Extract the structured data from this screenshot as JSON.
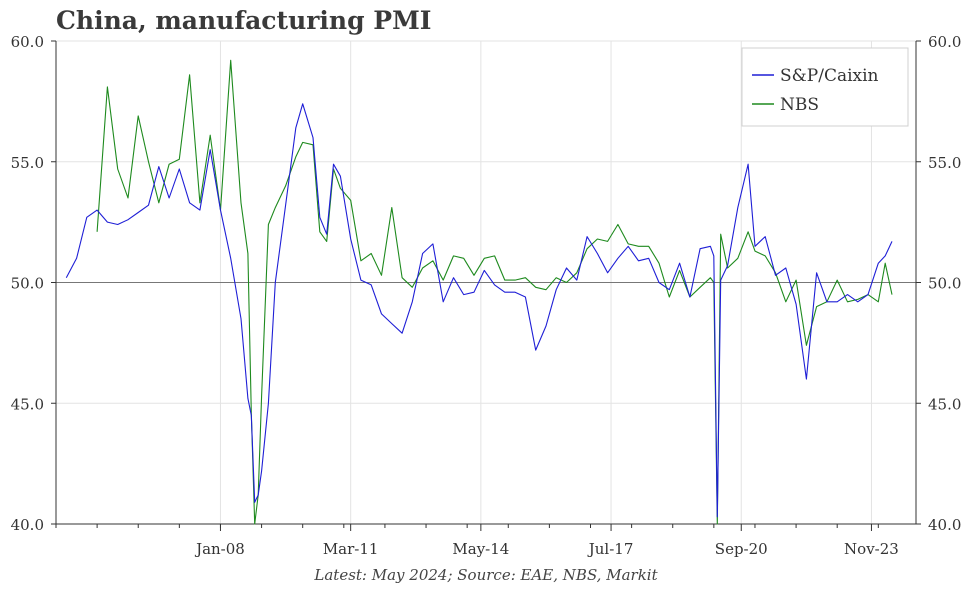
{
  "title": "China, manufacturing PMI",
  "source": "Latest: May 2024; Source: EAE, NBS, Markit",
  "chart_data": {
    "type": "line",
    "title": "China, manufacturing PMI",
    "xlabel": "",
    "ylabel": "",
    "ylim": [
      40.0,
      60.0
    ],
    "y_ticks": [
      "40.0",
      "45.0",
      "50.0",
      "55.0",
      "60.0"
    ],
    "x_ticks": [
      "Jan-08",
      "Mar-11",
      "May-14",
      "Jul-17",
      "Sep-20",
      "Nov-23"
    ],
    "xlim": [
      "2004-01",
      "2024-12"
    ],
    "reference_line": 50.0,
    "grid": true,
    "legend": "top-right",
    "series": [
      {
        "name": "S&P/Caixin",
        "color": "#1f1fd6",
        "x": [
          "2004-04",
          "2004-07",
          "2004-10",
          "2005-01",
          "2005-04",
          "2005-07",
          "2005-10",
          "2006-01",
          "2006-04",
          "2006-07",
          "2006-10",
          "2007-01",
          "2007-04",
          "2007-07",
          "2007-10",
          "2008-01",
          "2008-04",
          "2008-07",
          "2008-09",
          "2008-10",
          "2008-11",
          "2008-12",
          "2009-01",
          "2009-03",
          "2009-05",
          "2009-08",
          "2009-11",
          "2010-01",
          "2010-04",
          "2010-06",
          "2010-08",
          "2010-10",
          "2010-12",
          "2011-03",
          "2011-06",
          "2011-09",
          "2011-12",
          "2012-03",
          "2012-06",
          "2012-09",
          "2012-12",
          "2013-03",
          "2013-06",
          "2013-09",
          "2013-12",
          "2014-03",
          "2014-06",
          "2014-09",
          "2014-12",
          "2015-03",
          "2015-06",
          "2015-09",
          "2015-12",
          "2016-03",
          "2016-06",
          "2016-09",
          "2016-12",
          "2017-03",
          "2017-06",
          "2017-09",
          "2017-12",
          "2018-03",
          "2018-06",
          "2018-09",
          "2018-12",
          "2019-03",
          "2019-06",
          "2019-09",
          "2019-12",
          "2020-01",
          "2020-02",
          "2020-03",
          "2020-05",
          "2020-08",
          "2020-11",
          "2021-01",
          "2021-04",
          "2021-07",
          "2021-10",
          "2022-01",
          "2022-04",
          "2022-07",
          "2022-10",
          "2023-01",
          "2023-04",
          "2023-07",
          "2023-10",
          "2024-01",
          "2024-03",
          "2024-05"
        ],
        "values": [
          50.2,
          51.0,
          52.7,
          53.0,
          52.5,
          52.4,
          52.6,
          52.9,
          53.2,
          54.8,
          53.5,
          54.7,
          53.3,
          53.0,
          55.5,
          53.0,
          51.0,
          48.5,
          45.2,
          44.5,
          40.9,
          41.2,
          42.2,
          45.0,
          50.0,
          53.2,
          56.4,
          57.4,
          56.0,
          52.7,
          52.0,
          54.9,
          54.4,
          51.8,
          50.1,
          49.9,
          48.7,
          48.3,
          47.9,
          49.2,
          51.2,
          51.6,
          49.2,
          50.2,
          49.5,
          49.6,
          50.5,
          49.9,
          49.6,
          49.6,
          49.4,
          47.2,
          48.2,
          49.7,
          50.6,
          50.1,
          51.9,
          51.2,
          50.4,
          51.0,
          51.5,
          50.9,
          51.0,
          50.0,
          49.7,
          50.8,
          49.4,
          51.4,
          51.5,
          51.1,
          40.3,
          50.1,
          50.7,
          53.1,
          54.9,
          51.5,
          51.9,
          50.3,
          50.6,
          49.1,
          46.0,
          50.4,
          49.2,
          49.2,
          49.5,
          49.2,
          49.5,
          50.8,
          51.1,
          51.7
        ]
      },
      {
        "name": "NBS",
        "color": "#1e8a1e",
        "x": [
          "2005-01",
          "2005-04",
          "2005-07",
          "2005-10",
          "2006-01",
          "2006-04",
          "2006-07",
          "2006-10",
          "2007-01",
          "2007-04",
          "2007-07",
          "2007-10",
          "2008-01",
          "2008-04",
          "2008-07",
          "2008-09",
          "2008-10",
          "2008-11",
          "2008-12",
          "2009-01",
          "2009-03",
          "2009-05",
          "2009-08",
          "2009-11",
          "2010-01",
          "2010-04",
          "2010-06",
          "2010-08",
          "2010-10",
          "2010-12",
          "2011-03",
          "2011-06",
          "2011-09",
          "2011-12",
          "2012-03",
          "2012-06",
          "2012-09",
          "2012-12",
          "2013-03",
          "2013-06",
          "2013-09",
          "2013-12",
          "2014-03",
          "2014-06",
          "2014-09",
          "2014-12",
          "2015-03",
          "2015-06",
          "2015-09",
          "2015-12",
          "2016-03",
          "2016-06",
          "2016-09",
          "2016-12",
          "2017-03",
          "2017-06",
          "2017-09",
          "2017-12",
          "2018-03",
          "2018-06",
          "2018-09",
          "2018-12",
          "2019-03",
          "2019-06",
          "2019-09",
          "2019-12",
          "2020-01",
          "2020-02",
          "2020-03",
          "2020-05",
          "2020-08",
          "2020-11",
          "2021-01",
          "2021-04",
          "2021-07",
          "2021-10",
          "2022-01",
          "2022-04",
          "2022-07",
          "2022-10",
          "2023-01",
          "2023-04",
          "2023-07",
          "2023-10",
          "2024-01",
          "2024-03",
          "2024-05"
        ],
        "values": [
          52.1,
          58.1,
          54.7,
          53.5,
          56.9,
          55.0,
          53.3,
          54.9,
          55.1,
          58.6,
          53.3,
          56.1,
          53.0,
          59.2,
          53.3,
          51.2,
          44.6,
          38.8,
          41.2,
          45.3,
          52.4,
          53.1,
          54.0,
          55.2,
          55.8,
          55.7,
          52.1,
          51.7,
          54.7,
          53.9,
          53.4,
          50.9,
          51.2,
          50.3,
          53.1,
          50.2,
          49.8,
          50.6,
          50.9,
          50.1,
          51.1,
          51.0,
          50.3,
          51.0,
          51.1,
          50.1,
          50.1,
          50.2,
          49.8,
          49.7,
          50.2,
          50.0,
          50.4,
          51.4,
          51.8,
          51.7,
          52.4,
          51.6,
          51.5,
          51.5,
          50.8,
          49.4,
          50.5,
          49.4,
          49.8,
          50.2,
          50.0,
          35.7,
          52.0,
          50.6,
          51.0,
          52.1,
          51.3,
          51.1,
          50.4,
          49.2,
          50.1,
          47.4,
          49.0,
          49.2,
          50.1,
          49.2,
          49.3,
          49.5,
          49.2,
          50.8,
          49.5
        ]
      }
    ]
  }
}
